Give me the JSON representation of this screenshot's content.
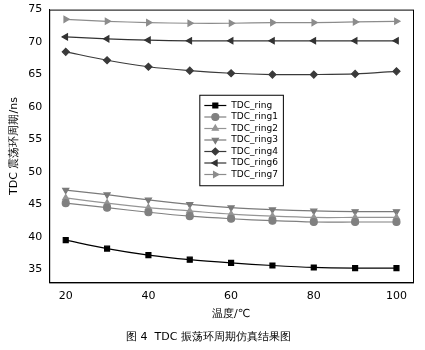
{
  "chart_data": {
    "type": "line",
    "title": "图 4  TDC 振荡环周期仿真结果图",
    "x_label": "温度/℃",
    "y_label": "TDC 震荡环周期/ns",
    "x": [
      20,
      30,
      40,
      50,
      60,
      70,
      80,
      90,
      100
    ],
    "series": [
      {
        "name": "TDC_ring",
        "color": "#000000",
        "marker": "square",
        "values": [
          39.5,
          38.2,
          37.2,
          36.5,
          36.0,
          35.6,
          35.3,
          35.2,
          35.2
        ]
      },
      {
        "name": "TDC_ring1",
        "color": "#808080",
        "marker": "circle",
        "values": [
          45.2,
          44.5,
          43.8,
          43.2,
          42.8,
          42.5,
          42.3,
          42.3,
          42.3
        ]
      },
      {
        "name": "TDC_ring2",
        "color": "#959595",
        "marker": "triangle-up",
        "values": [
          46.0,
          45.2,
          44.5,
          44.0,
          43.5,
          43.2,
          43.0,
          43.0,
          43.0
        ]
      },
      {
        "name": "TDC_ring3",
        "color": "#7a7a7a",
        "marker": "triangle-down",
        "values": [
          47.2,
          46.5,
          45.7,
          45.0,
          44.5,
          44.2,
          44.0,
          43.9,
          43.9
        ]
      },
      {
        "name": "TDC_ring4",
        "color": "#3a3a3a",
        "marker": "diamond",
        "values": [
          68.5,
          67.2,
          66.2,
          65.6,
          65.2,
          65.0,
          65.0,
          65.1,
          65.5
        ]
      },
      {
        "name": "TDC_ring6",
        "color": "#333333",
        "marker": "triangle-left",
        "values": [
          70.8,
          70.5,
          70.3,
          70.2,
          70.2,
          70.2,
          70.2,
          70.2,
          70.2
        ]
      },
      {
        "name": "TDC_ring7",
        "color": "#8c8c8c",
        "marker": "triangle-right",
        "values": [
          73.5,
          73.2,
          73.0,
          72.9,
          72.9,
          73.0,
          73.0,
          73.1,
          73.2
        ]
      }
    ],
    "xlim": [
      16,
      104
    ],
    "xticks": [
      20,
      40,
      60,
      80,
      100
    ],
    "ylim": [
      33,
      75
    ],
    "yticks": [
      35,
      40,
      45,
      50,
      55,
      60,
      65,
      70,
      75
    ],
    "grid": false,
    "legend": "center"
  }
}
